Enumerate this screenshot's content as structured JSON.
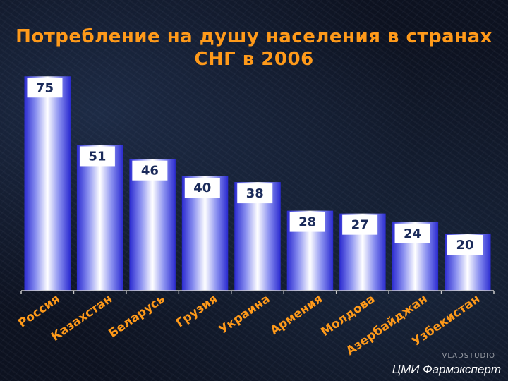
{
  "title_line1": "Потребление на душу населения в странах",
  "title_line2": "СНГ в 2006",
  "source": "ЦМИ Фармэксперт",
  "watermark": "VLADSTUDIO",
  "colors": {
    "title": "#ff9a1a",
    "bar_light": "#ffffff",
    "bar_dark": "#3a3ad8",
    "label_bg": "#ffffff",
    "label_text": "#1a2a5a",
    "category_text": "#ff9a1a",
    "axis": "#c8c8c8"
  },
  "chart_data": {
    "type": "bar",
    "categories": [
      "Россия",
      "Казахстан",
      "Беларусь",
      "Грузия",
      "Украина",
      "Армения",
      "Молдова",
      "Азербайджан",
      "Узбекистан"
    ],
    "values": [
      75,
      51,
      46,
      40,
      38,
      28,
      27,
      24,
      20
    ],
    "ylim": [
      0,
      80
    ],
    "grid": false,
    "legend": "none"
  }
}
